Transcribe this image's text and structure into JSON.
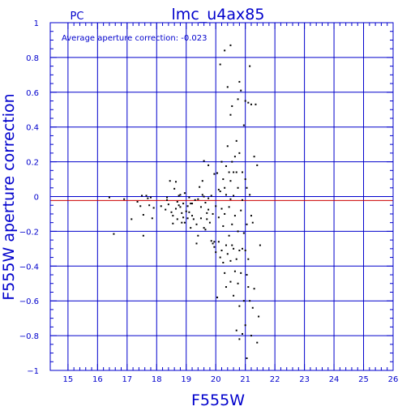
{
  "chart_data": {
    "type": "scatter",
    "title": "lmc_u4ax85",
    "label_left": "PC",
    "annotation": "Average aperture correction: -0.023",
    "xlabel": "F555W",
    "ylabel": "F555W aperture correction",
    "xlim": [
      14.4,
      26.0
    ],
    "ylim": [
      -1.0,
      1.0
    ],
    "xticks": [
      15,
      16,
      17,
      18,
      19,
      20,
      21,
      22,
      23,
      24,
      25,
      26
    ],
    "yticks": [
      -1,
      -0.8,
      -0.6,
      -0.4,
      -0.2,
      0,
      0.2,
      0.4,
      0.6,
      0.8,
      1
    ],
    "ytick_labels": [
      "−1",
      "−0.8",
      "−0.6",
      "−0.4",
      "−0.2",
      "0",
      "0.2",
      "0.4",
      "0.6",
      "0.8",
      "1"
    ],
    "grid": true,
    "reference_lines": [
      {
        "y": 0.0,
        "color": "#0000cc"
      },
      {
        "y": -0.023,
        "color": "#cc0000"
      }
    ],
    "colors": {
      "axes": "#0000cc",
      "points": "#000000",
      "text": "#0000cc",
      "mean_line": "#cc0000"
    },
    "points": [
      [
        16.4,
        -0.005
      ],
      [
        16.55,
        -0.215
      ],
      [
        16.9,
        -0.015
      ],
      [
        17.15,
        -0.13
      ],
      [
        17.35,
        -0.03
      ],
      [
        17.45,
        -0.055
      ],
      [
        17.5,
        0.005
      ],
      [
        17.55,
        -0.105
      ],
      [
        17.55,
        -0.225
      ],
      [
        17.65,
        0.005
      ],
      [
        17.7,
        -0.01
      ],
      [
        17.75,
        -0.05
      ],
      [
        17.8,
        -0.005
      ],
      [
        17.85,
        -0.125
      ],
      [
        17.9,
        -0.065
      ],
      [
        18.15,
        -0.055
      ],
      [
        18.3,
        -0.075
      ],
      [
        18.35,
        -0.005
      ],
      [
        18.35,
        -0.02
      ],
      [
        18.4,
        -0.045
      ],
      [
        18.45,
        0.09
      ],
      [
        18.5,
        -0.09
      ],
      [
        18.55,
        -0.11
      ],
      [
        18.55,
        -0.155
      ],
      [
        18.6,
        0.045
      ],
      [
        18.65,
        0.085
      ],
      [
        18.65,
        -0.07
      ],
      [
        18.7,
        -0.03
      ],
      [
        18.7,
        -0.13
      ],
      [
        18.75,
        0.005
      ],
      [
        18.75,
        -0.05
      ],
      [
        18.8,
        -0.06
      ],
      [
        18.8,
        0.01
      ],
      [
        18.85,
        -0.095
      ],
      [
        18.85,
        -0.15
      ],
      [
        18.9,
        -0.04
      ],
      [
        18.9,
        -0.12
      ],
      [
        18.95,
        -0.15
      ],
      [
        18.95,
        0.02
      ],
      [
        19.0,
        -0.085
      ],
      [
        19.05,
        -0.055
      ],
      [
        19.05,
        -0.125
      ],
      [
        19.1,
        -0.09
      ],
      [
        19.1,
        -0.005
      ],
      [
        19.15,
        -0.18
      ],
      [
        19.15,
        -0.04
      ],
      [
        19.2,
        -0.11
      ],
      [
        19.2,
        -0.04
      ],
      [
        19.25,
        -0.13
      ],
      [
        19.3,
        -0.02
      ],
      [
        19.35,
        -0.27
      ],
      [
        19.35,
        -0.16
      ],
      [
        19.4,
        -0.015
      ],
      [
        19.4,
        -0.225
      ],
      [
        19.45,
        0.055
      ],
      [
        19.5,
        -0.06
      ],
      [
        19.5,
        -0.125
      ],
      [
        19.55,
        0.09
      ],
      [
        19.55,
        0.01
      ],
      [
        19.6,
        0.0
      ],
      [
        19.6,
        -0.18
      ],
      [
        19.6,
        0.205
      ],
      [
        19.65,
        -0.035
      ],
      [
        19.65,
        -0.19
      ],
      [
        19.7,
        -0.095
      ],
      [
        19.7,
        -0.13
      ],
      [
        19.75,
        -0.01
      ],
      [
        19.75,
        -0.075
      ],
      [
        19.75,
        0.18
      ],
      [
        19.8,
        -0.15
      ],
      [
        19.85,
        -0.255
      ],
      [
        19.85,
        0.005
      ],
      [
        19.9,
        -0.27
      ],
      [
        19.9,
        -0.1
      ],
      [
        19.95,
        0.13
      ],
      [
        19.95,
        -0.29
      ],
      [
        19.95,
        -0.26
      ],
      [
        20.0,
        -0.055
      ],
      [
        20.0,
        -0.32
      ],
      [
        20.05,
        0.135
      ],
      [
        20.05,
        -0.58
      ],
      [
        20.1,
        -0.12
      ],
      [
        20.1,
        0.04
      ],
      [
        20.1,
        -0.26
      ],
      [
        20.15,
        0.03
      ],
      [
        20.15,
        -0.35
      ],
      [
        20.15,
        0.76
      ],
      [
        20.2,
        0.2
      ],
      [
        20.2,
        -0.07
      ],
      [
        20.2,
        -0.31
      ],
      [
        20.25,
        0.1
      ],
      [
        20.25,
        -0.17
      ],
      [
        20.25,
        -0.38
      ],
      [
        20.3,
        0.84
      ],
      [
        20.3,
        0.05
      ],
      [
        20.3,
        -0.1
      ],
      [
        20.3,
        -0.44
      ],
      [
        20.35,
        0.175
      ],
      [
        20.35,
        0.01
      ],
      [
        20.35,
        -0.28
      ],
      [
        20.35,
        -0.52
      ],
      [
        20.4,
        0.63
      ],
      [
        20.4,
        0.29
      ],
      [
        20.4,
        -0.33
      ],
      [
        20.45,
        0.14
      ],
      [
        20.45,
        -0.06
      ],
      [
        20.45,
        -0.225
      ],
      [
        20.5,
        0.87
      ],
      [
        20.5,
        0.47
      ],
      [
        20.5,
        0.09
      ],
      [
        20.5,
        -0.015
      ],
      [
        20.5,
        -0.37
      ],
      [
        20.5,
        -0.49
      ],
      [
        20.55,
        0.52
      ],
      [
        20.55,
        0.2
      ],
      [
        20.55,
        -0.16
      ],
      [
        20.55,
        -0.28
      ],
      [
        20.6,
        0.14
      ],
      [
        20.6,
        0.005
      ],
      [
        20.6,
        -0.3
      ],
      [
        20.6,
        -0.57
      ],
      [
        20.65,
        0.23
      ],
      [
        20.65,
        -0.11
      ],
      [
        20.65,
        -0.43
      ],
      [
        20.7,
        0.32
      ],
      [
        20.7,
        0.14
      ],
      [
        20.7,
        -0.36
      ],
      [
        20.7,
        -0.77
      ],
      [
        20.75,
        0.56
      ],
      [
        20.75,
        0.05
      ],
      [
        20.75,
        -0.2
      ],
      [
        20.75,
        -0.5
      ],
      [
        20.8,
        0.66
      ],
      [
        20.8,
        0.25
      ],
      [
        20.8,
        -0.31
      ],
      [
        20.8,
        -0.63
      ],
      [
        20.8,
        -0.82
      ],
      [
        20.85,
        0.61
      ],
      [
        20.85,
        -0.08
      ],
      [
        20.85,
        -0.44
      ],
      [
        20.9,
        0.14
      ],
      [
        20.9,
        -0.02
      ],
      [
        20.9,
        -0.3
      ],
      [
        20.9,
        -0.79
      ],
      [
        20.95,
        0.41
      ],
      [
        20.95,
        -0.21
      ],
      [
        20.95,
        -0.6
      ],
      [
        21.0,
        0.55
      ],
      [
        21.0,
        0.1
      ],
      [
        21.0,
        -0.31
      ],
      [
        21.0,
        -0.74
      ],
      [
        21.05,
        0.05
      ],
      [
        21.05,
        -0.16
      ],
      [
        21.05,
        -0.45
      ],
      [
        21.05,
        -0.93
      ],
      [
        21.1,
        0.54
      ],
      [
        21.1,
        -0.36
      ],
      [
        21.1,
        -0.52
      ],
      [
        21.15,
        0.75
      ],
      [
        21.15,
        0.01
      ],
      [
        21.15,
        -0.6
      ],
      [
        21.2,
        0.53
      ],
      [
        21.2,
        -0.11
      ],
      [
        21.2,
        -0.8
      ],
      [
        21.25,
        -0.15
      ],
      [
        21.25,
        -0.64
      ],
      [
        21.3,
        0.23
      ],
      [
        21.3,
        -0.53
      ],
      [
        21.35,
        0.53
      ],
      [
        21.4,
        0.18
      ],
      [
        21.4,
        -0.84
      ],
      [
        21.45,
        -0.69
      ],
      [
        21.5,
        -0.28
      ]
    ]
  }
}
